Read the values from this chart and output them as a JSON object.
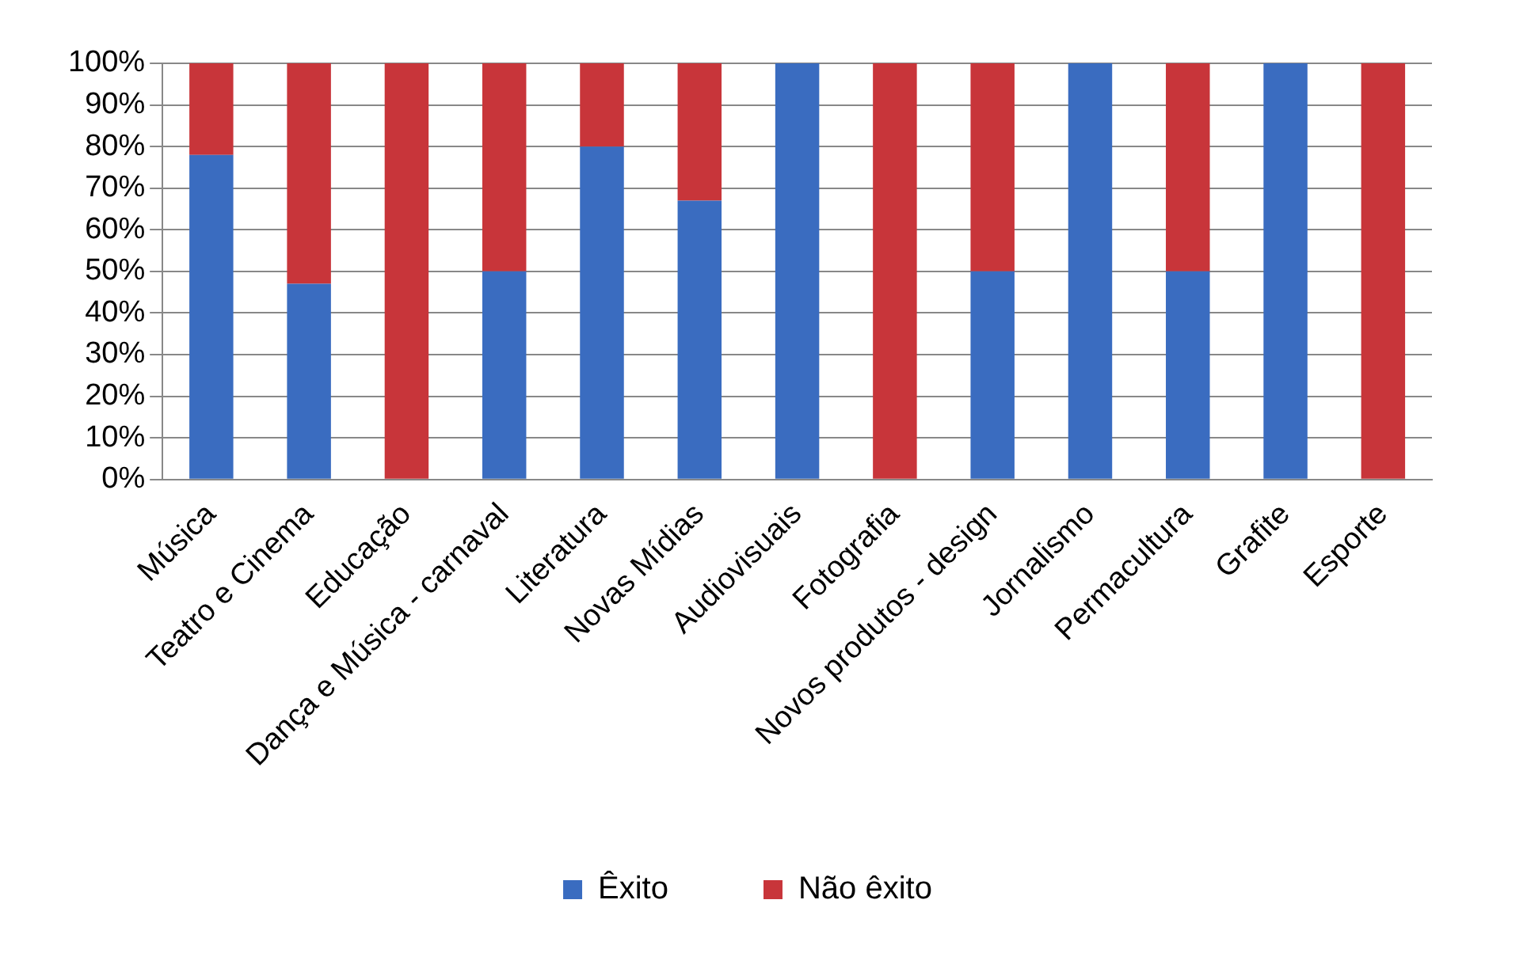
{
  "chart_data": {
    "type": "bar",
    "stacked": true,
    "categories": [
      "Música",
      "Teatro e Cinema",
      "Educação",
      "Dança e Música - carnaval",
      "Literatura",
      "Novas Mídias",
      "Audiovisuais",
      "Fotografia",
      "Novos produtos - design",
      "Jornalismo",
      "Permacultura",
      "Grafite",
      "Esporte"
    ],
    "series": [
      {
        "name": "Êxito",
        "color": "#3a6cc0",
        "values": [
          78,
          47,
          0,
          50,
          80,
          67,
          100,
          0,
          50,
          100,
          50,
          100,
          0
        ]
      },
      {
        "name": "Não êxito",
        "color": "#c8353a",
        "values": [
          22,
          53,
          100,
          50,
          20,
          33,
          0,
          100,
          50,
          0,
          50,
          0,
          100
        ]
      }
    ],
    "ylim": [
      0,
      100
    ],
    "yticks": [
      {
        "value": 0,
        "label": "0%"
      },
      {
        "value": 10,
        "label": "10%"
      },
      {
        "value": 20,
        "label": "20%"
      },
      {
        "value": 30,
        "label": "30%"
      },
      {
        "value": 40,
        "label": "40%"
      },
      {
        "value": 50,
        "label": "50%"
      },
      {
        "value": 60,
        "label": "60%"
      },
      {
        "value": 70,
        "label": "70%"
      },
      {
        "value": 80,
        "label": "80%"
      },
      {
        "value": 90,
        "label": "90%"
      },
      {
        "value": 100,
        "label": "100%"
      }
    ],
    "grid": "y",
    "legend": "bottom"
  }
}
